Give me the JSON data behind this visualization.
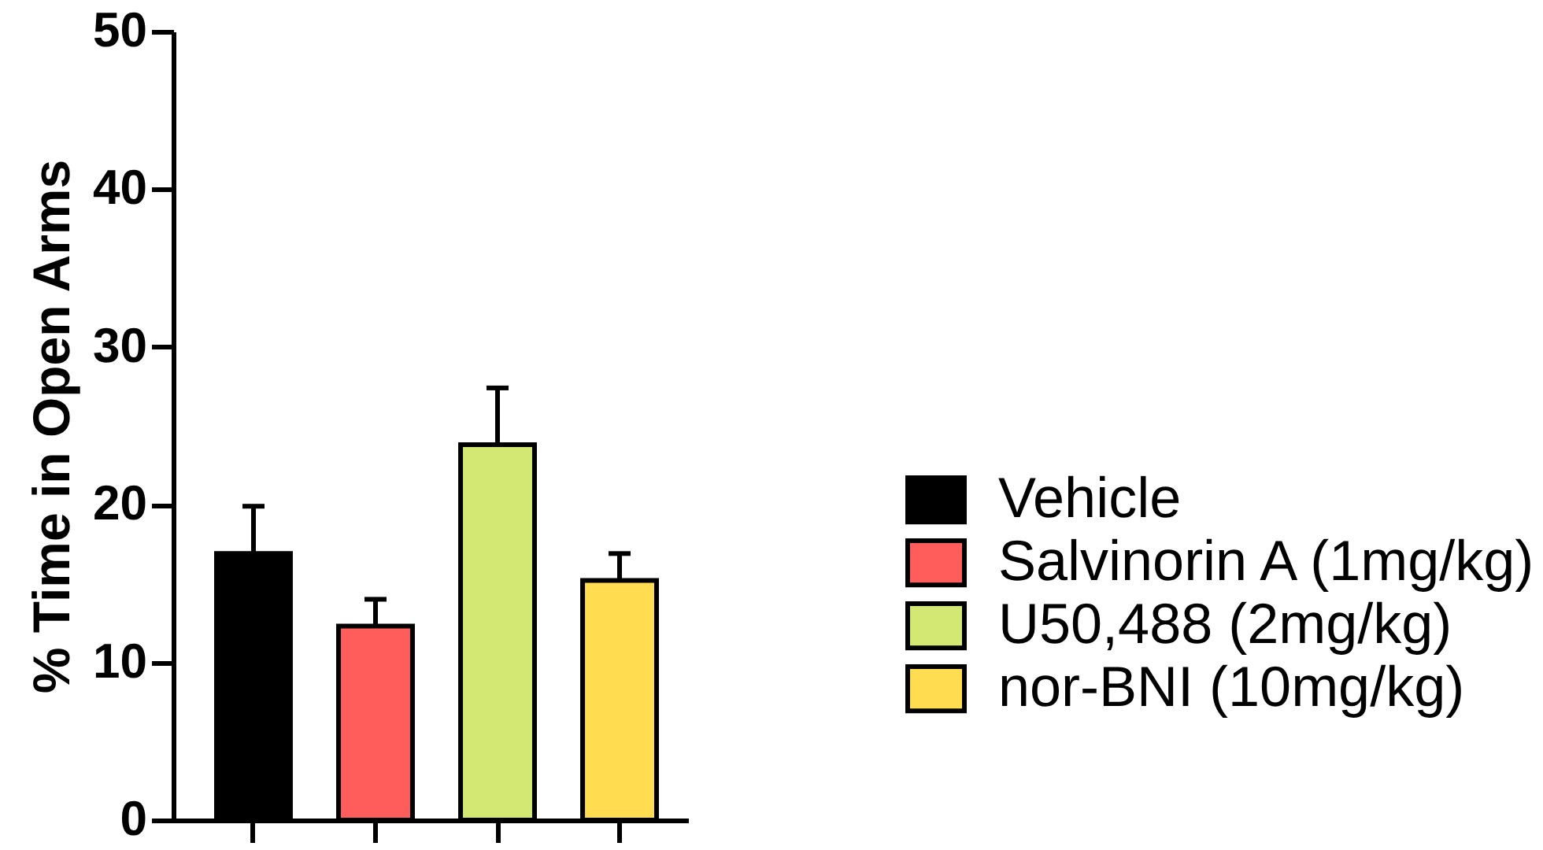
{
  "chart_data": {
    "type": "bar",
    "ylabel": "% Time in Open Arms",
    "categories": [
      null,
      null,
      null,
      null
    ],
    "series": [
      {
        "name": "Vehicle",
        "color": "#000000",
        "values": [
          16.9,
          null,
          null,
          null
        ],
        "errors": [
          [
            16.9,
            19.9
          ],
          null,
          null,
          null
        ]
      },
      {
        "name": "Salvinorin A (1mg/kg)",
        "color": "#ff5c5c",
        "values": [
          null,
          12.3,
          null,
          null
        ],
        "errors": [
          null,
          [
            12.3,
            14.0
          ],
          null,
          null
        ]
      },
      {
        "name": "U50,488 (2mg/kg)",
        "color": "#d2e872",
        "values": [
          null,
          null,
          23.8,
          null
        ],
        "errors": [
          null,
          null,
          [
            23.8,
            27.4
          ],
          null
        ]
      },
      {
        "name": "nor-BNI (10mg/kg)",
        "color": "#ffdc50",
        "values": [
          null,
          null,
          null,
          15.2
        ],
        "errors": [
          null,
          null,
          null,
          [
            15.2,
            16.9
          ]
        ]
      }
    ],
    "ylim": [
      0,
      50
    ],
    "yticks": [
      0,
      10,
      20,
      30,
      40,
      50
    ],
    "tick_labels": "y",
    "grid": false,
    "legend": "right"
  }
}
